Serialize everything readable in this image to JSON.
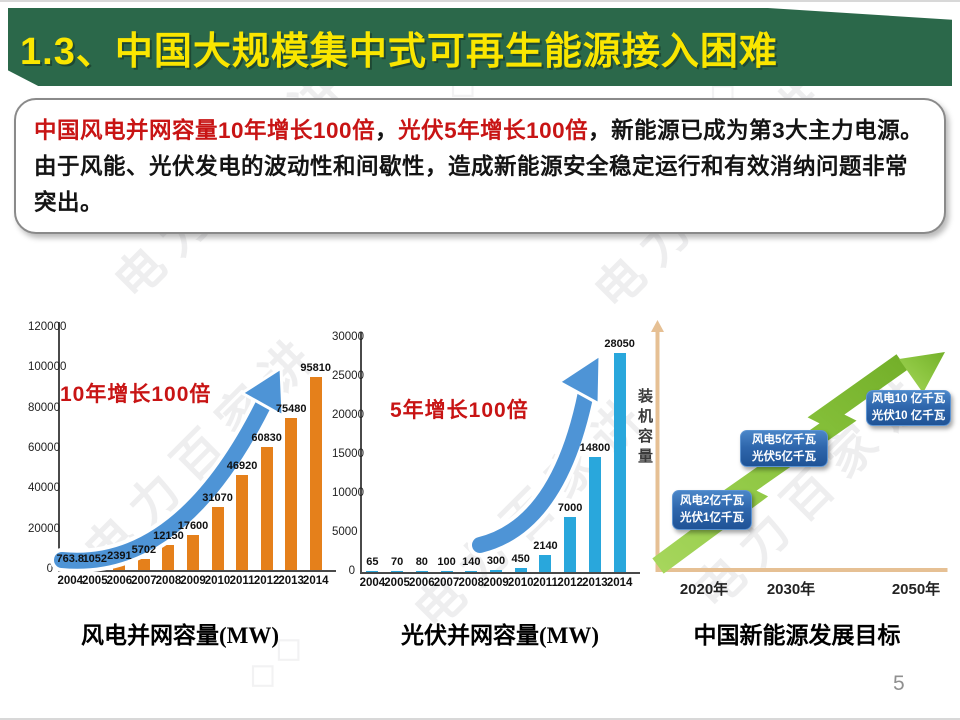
{
  "slide": {
    "title": "1.3、中国大规模集中式可再生能源接入困难",
    "page_number": "5",
    "watermark_text": "电力百家讲",
    "watermark_diamonds": "◇◇",
    "colors": {
      "title_bar_bg": "#2B684A",
      "title_text": "#FAE600",
      "emphasis_red": "#C81414",
      "wind_bar_orange": "#E5801B",
      "solar_bar_cyan": "#29A7DC",
      "trend_arrow_blue": "#4E94D6",
      "goal_arrow_green": "#8AC43E",
      "goal_axis_tan": "#E6C094",
      "milestone_box_blue": "#2F67AD"
    }
  },
  "intro": {
    "red_part1": "中国风电并网容量10年增长100倍",
    "separator1": "，",
    "red_part2": "光伏5年增长100倍",
    "black_part": "，新能源已成为第3大主力电源。由于风能、光伏发电的波动性和间歇性，造成新能源安全稳定运行和有效消纳问题非常突出。"
  },
  "chart_data": [
    {
      "type": "bar",
      "title": "风电并网容量(MW)",
      "annotation": "10年增长100倍",
      "categories": [
        "2004",
        "2005",
        "2006",
        "2007",
        "2008",
        "2009",
        "2010",
        "2011",
        "2012",
        "2013",
        "2014"
      ],
      "values": [
        763.8,
        1052,
        2391,
        5702,
        12150,
        17600,
        31070,
        46920,
        60830,
        75480,
        95810
      ],
      "value_labels": [
        "763.8",
        "1052",
        "2391",
        "5702",
        "12150",
        "17600",
        "31070",
        "46920",
        "60830",
        "75480",
        "95810"
      ],
      "ylim": [
        0,
        120000
      ],
      "yticks": [
        "0",
        "20000",
        "40000",
        "60000",
        "80000",
        "100000",
        "120000"
      ],
      "bar_color": "#E5801B",
      "grid": false,
      "legend": false
    },
    {
      "type": "bar",
      "title": "光伏并网容量(MW)",
      "annotation": "5年增长100倍",
      "categories": [
        "2004",
        "2005",
        "2006",
        "2007",
        "2008",
        "2009",
        "2010",
        "2011",
        "2012",
        "2013",
        "2014"
      ],
      "values": [
        65,
        70,
        80,
        100,
        140,
        300,
        450,
        2140,
        7000,
        14800,
        28050
      ],
      "value_labels": [
        "65",
        "70",
        "80",
        "100",
        "140",
        "300",
        "450",
        "2140",
        "7000",
        "14800",
        "28050"
      ],
      "ylim": [
        0,
        30000
      ],
      "yticks": [
        "0",
        "5000",
        "10000",
        "15000",
        "20000",
        "25000",
        "30000"
      ],
      "bar_color": "#29A7DC",
      "grid": false,
      "legend": false
    },
    {
      "type": "diagram",
      "title": "中国新能源发展目标",
      "ylabel": "装机容量",
      "x_ticks": [
        "2020年",
        "2030年",
        "2050年"
      ],
      "milestones": [
        {
          "lines": [
            "风电2亿千瓦",
            "光伏1亿千瓦"
          ]
        },
        {
          "lines": [
            "风电5亿千瓦",
            "光伏5亿千瓦"
          ]
        },
        {
          "lines": [
            "风电10 亿千瓦",
            "光伏10 亿千瓦"
          ]
        }
      ]
    }
  ]
}
